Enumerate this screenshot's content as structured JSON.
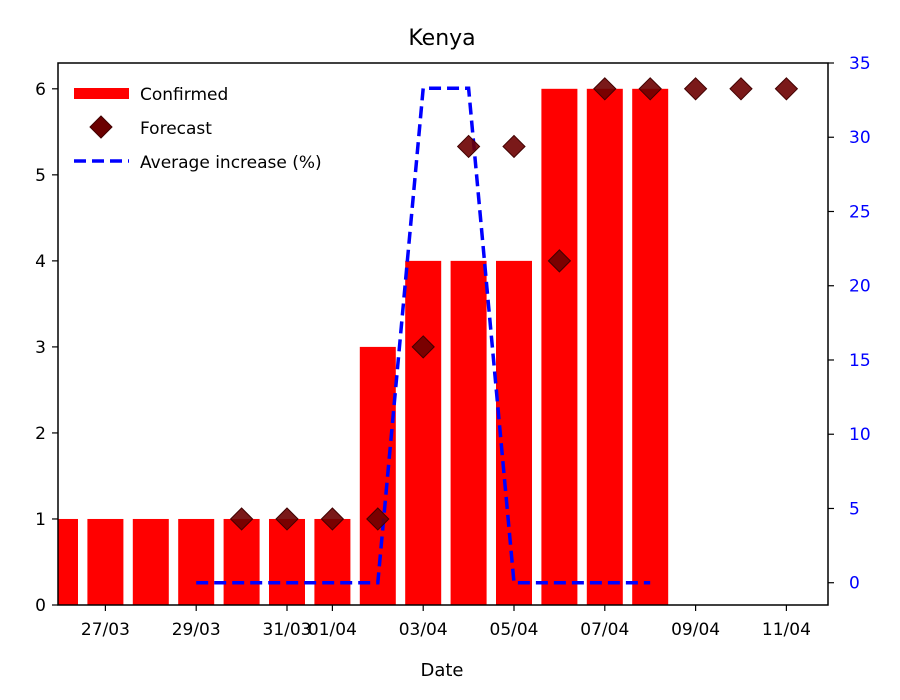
{
  "chart_data": {
    "type": "bar",
    "title": "Kenya",
    "xlabel": "Date",
    "ylabel": "",
    "y2label": "",
    "x_dates": [
      "26/03",
      "27/03",
      "28/03",
      "29/03",
      "30/03",
      "31/03",
      "01/04",
      "02/04",
      "03/04",
      "04/04",
      "05/04",
      "06/04",
      "07/04",
      "08/04",
      "09/04",
      "10/04",
      "11/04"
    ],
    "x_tick_labels": [
      "27/03",
      "29/03",
      "31/03",
      "01/04",
      "03/04",
      "05/04",
      "07/04",
      "09/04",
      "11/04"
    ],
    "ylim": [
      0,
      6.3
    ],
    "y_ticks": [
      0,
      1,
      2,
      3,
      4,
      5,
      6
    ],
    "y2lim": [
      -1.5,
      35
    ],
    "y2_ticks": [
      0,
      5,
      10,
      15,
      20,
      25,
      30,
      35
    ],
    "series": [
      {
        "name": "Confirmed",
        "kind": "bar",
        "color": "#ff0000",
        "x": [
          "26/03",
          "27/03",
          "28/03",
          "29/03",
          "30/03",
          "31/03",
          "01/04",
          "02/04",
          "03/04",
          "04/04",
          "05/04",
          "06/04",
          "07/04",
          "08/04"
        ],
        "values": [
          1,
          1,
          1,
          1,
          1,
          1,
          1,
          3,
          4,
          4,
          4,
          6,
          6,
          6
        ]
      },
      {
        "name": "Forecast",
        "kind": "scatter",
        "marker": "diamond",
        "color": "#6b0000",
        "x": [
          "30/03",
          "31/03",
          "01/04",
          "02/04",
          "03/04",
          "04/04",
          "05/04",
          "06/04",
          "07/04",
          "08/04",
          "09/04",
          "10/04",
          "11/04"
        ],
        "values": [
          1,
          1,
          1,
          1,
          3,
          5.33,
          5.33,
          4,
          6,
          6,
          6,
          6,
          6
        ]
      },
      {
        "name": "Average increase (%)",
        "kind": "line",
        "axis": "right",
        "linestyle": "dashed",
        "color": "#0000ff",
        "x": [
          "29/03",
          "30/03",
          "31/03",
          "01/04",
          "02/04",
          "03/04",
          "04/04",
          "05/04",
          "06/04",
          "07/04",
          "08/04"
        ],
        "values": [
          0,
          0,
          0,
          0,
          0,
          33.3,
          33.3,
          0,
          0,
          0,
          0
        ]
      }
    ],
    "legend_position": "top-left",
    "grid": false
  }
}
